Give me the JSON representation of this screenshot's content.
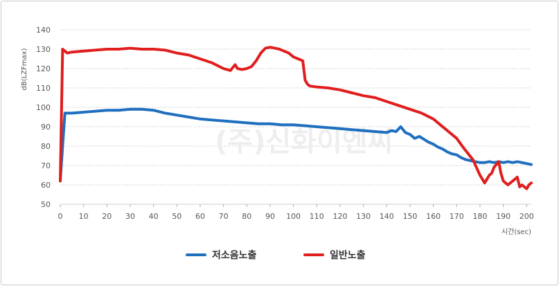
{
  "chart_data": {
    "type": "line",
    "ylabel": "dB(LZFmax)",
    "xlabel": "시간(sec)",
    "xlim": [
      0,
      202
    ],
    "ylim": [
      50,
      140
    ],
    "xticks": [
      0,
      10,
      20,
      30,
      40,
      50,
      60,
      70,
      80,
      90,
      100,
      110,
      120,
      130,
      140,
      150,
      160,
      170,
      180,
      190,
      200
    ],
    "yticks": [
      50,
      60,
      70,
      80,
      90,
      100,
      110,
      120,
      130,
      140
    ],
    "grid": "horizontal dashed",
    "legend_position": "bottom-center",
    "watermark": "(주)신화이엔씨",
    "series": [
      {
        "name": "저소음노출",
        "color": "#1f6fbf",
        "x": [
          0,
          1,
          2,
          3,
          5,
          10,
          15,
          20,
          25,
          30,
          35,
          40,
          45,
          50,
          55,
          60,
          65,
          70,
          75,
          80,
          85,
          90,
          95,
          100,
          105,
          110,
          115,
          120,
          125,
          130,
          135,
          140,
          142,
          144,
          146,
          148,
          150,
          152,
          154,
          156,
          158,
          160,
          162,
          164,
          166,
          168,
          170,
          172,
          174,
          176,
          178,
          180,
          182,
          184,
          186,
          188,
          190,
          192,
          194,
          196,
          198,
          200,
          202
        ],
        "y": [
          62,
          80,
          97,
          97,
          97,
          97.5,
          98,
          98.5,
          98.5,
          99,
          99,
          98.5,
          97,
          96,
          95,
          94,
          93.5,
          93,
          92.5,
          92,
          91.5,
          91.5,
          91,
          91,
          90.5,
          90,
          89.5,
          89,
          88.5,
          88,
          87.5,
          87,
          88,
          87.5,
          90,
          87,
          86,
          84,
          85,
          83.5,
          82,
          81,
          79.5,
          78.5,
          77,
          76,
          75.5,
          74,
          73,
          72.5,
          72,
          71.5,
          71.5,
          72,
          71.5,
          72,
          71.5,
          72,
          71.5,
          72,
          71.5,
          71,
          70.5
        ]
      },
      {
        "name": "일반노출",
        "color": "#e01e1e",
        "x": [
          0,
          1,
          2,
          3,
          5,
          10,
          15,
          20,
          25,
          30,
          35,
          40,
          45,
          50,
          55,
          60,
          65,
          70,
          73,
          75,
          76,
          78,
          80,
          82,
          84,
          86,
          88,
          90,
          92,
          94,
          96,
          98,
          100,
          102,
          104,
          105,
          106,
          107,
          110,
          115,
          120,
          125,
          130,
          135,
          140,
          145,
          150,
          155,
          160,
          165,
          170,
          173,
          175,
          177,
          180,
          182,
          184,
          185,
          186,
          188,
          189,
          190,
          192,
          194,
          196,
          197,
          198,
          200,
          201,
          202
        ],
        "y": [
          62,
          130,
          129,
          128,
          128.5,
          129,
          129.5,
          130,
          130,
          130.5,
          130,
          130,
          129.5,
          128,
          127,
          125,
          123,
          120,
          119,
          122,
          120,
          119.5,
          120,
          121,
          124,
          128,
          130.5,
          131,
          130.5,
          130,
          129,
          128,
          126,
          125,
          124,
          114,
          112,
          111,
          110.5,
          110,
          109,
          107.5,
          106,
          105,
          103,
          101,
          99,
          97,
          94,
          89,
          84,
          79,
          76,
          73,
          65,
          61,
          65,
          66,
          69,
          72,
          66,
          62,
          60,
          62,
          64,
          59,
          60,
          58,
          60,
          61
        ]
      }
    ]
  }
}
